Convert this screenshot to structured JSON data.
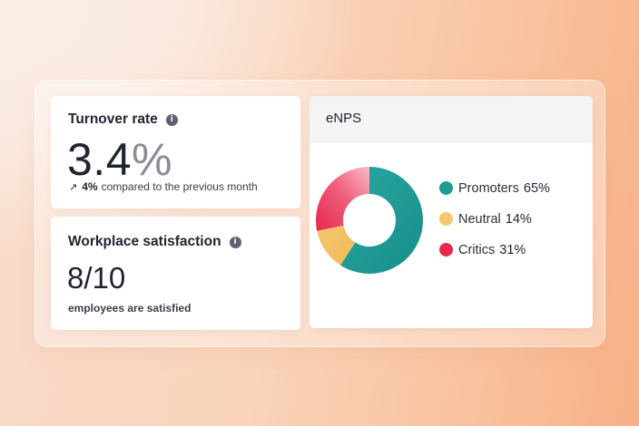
{
  "turnover": {
    "title": "Turnover rate",
    "value": "3.4",
    "unit": "%",
    "delta": "4%",
    "delta_text": "compared to the previous month"
  },
  "satisfaction": {
    "title": "Workplace satisfaction",
    "value": "8/10",
    "caption": "employees are satisfied"
  },
  "enps": {
    "title": "eNPS",
    "items": [
      {
        "label": "Promoters",
        "value": "65%",
        "color": "#1e9c98"
      },
      {
        "label": "Neutral",
        "value": "14%",
        "color": "#f5c76e"
      },
      {
        "label": "Critics",
        "value": "31%",
        "color": "#e8284d"
      }
    ]
  },
  "icons": {
    "info": "info-icon",
    "delta": "arrow-up-right-icon"
  },
  "chart_data": {
    "type": "pie",
    "title": "eNPS",
    "categories": [
      "Promoters",
      "Neutral",
      "Critics"
    ],
    "values": [
      65,
      14,
      31
    ],
    "colors": [
      "#1e9c98",
      "#f5c76e",
      "#e8284d"
    ],
    "legend": "right"
  }
}
